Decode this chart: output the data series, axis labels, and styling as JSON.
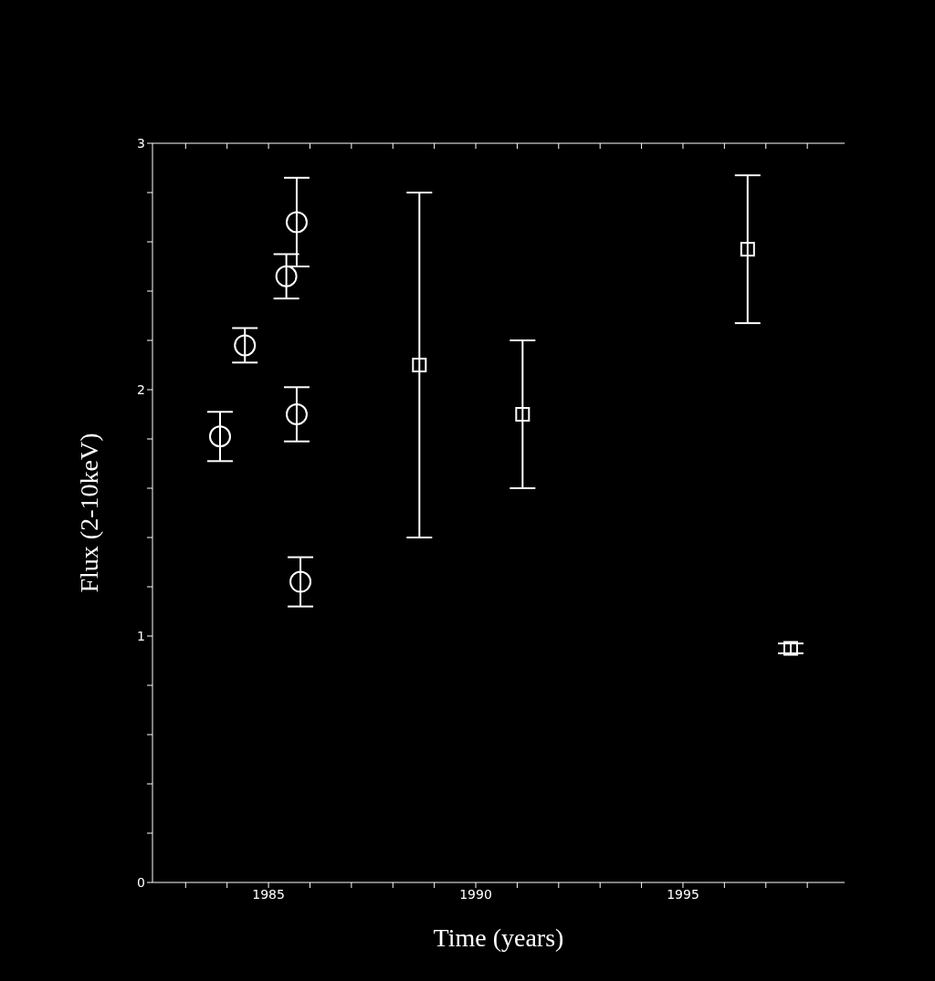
{
  "chart_data": {
    "type": "scatter",
    "xlabel": "Time (years)",
    "ylabel": "Flux (2-10keV)",
    "xlim": [
      1982.2,
      1998.9
    ],
    "ylim": [
      0,
      3
    ],
    "xticks": [
      {
        "value": 1983,
        "label": null
      },
      {
        "value": 1984,
        "label": null
      },
      1985,
      {
        "value": 1986,
        "label": null
      },
      {
        "value": 1987,
        "label": null
      },
      {
        "value": 1988,
        "label": null
      },
      {
        "value": 1989,
        "label": null
      },
      1990,
      {
        "value": 1991,
        "label": null
      },
      {
        "value": 1992,
        "label": null
      },
      {
        "value": 1993,
        "label": null
      },
      {
        "value": 1994,
        "label": null
      },
      1995,
      {
        "value": 1996,
        "label": null
      },
      {
        "value": 1997,
        "label": null
      },
      {
        "value": 1998,
        "label": null
      }
    ],
    "yticks": [
      0,
      {
        "value": 0.2,
        "label": null
      },
      {
        "value": 0.4,
        "label": null
      },
      {
        "value": 0.6,
        "label": null
      },
      {
        "value": 0.8,
        "label": null
      },
      1,
      {
        "value": 1.2,
        "label": null
      },
      {
        "value": 1.4,
        "label": null
      },
      {
        "value": 1.6,
        "label": null
      },
      {
        "value": 1.8,
        "label": null
      },
      2,
      {
        "value": 2.2,
        "label": null
      },
      {
        "value": 2.4,
        "label": null
      },
      {
        "value": 2.6,
        "label": null
      },
      {
        "value": 2.8,
        "label": null
      },
      3
    ],
    "grid": false,
    "legend": false,
    "series": [
      {
        "color": "#ffffff",
        "marker": "circle",
        "x": [
          1983.83,
          1984.43,
          1985.43,
          1985.68,
          1985.68,
          1985.77
        ],
        "values": [
          1.81,
          2.18,
          2.46,
          2.68,
          1.9,
          1.22
        ],
        "errors": [
          0.1,
          0.07,
          0.09,
          0.18,
          0.11,
          0.1
        ]
      },
      {
        "color": "#ffffff",
        "marker": "square",
        "x": [
          1988.64,
          1991.13,
          1996.56,
          1997.6
        ],
        "values": [
          2.1,
          1.9,
          2.57,
          0.95
        ],
        "errors": [
          0.7,
          0.3,
          0.3,
          0.02
        ]
      }
    ]
  }
}
